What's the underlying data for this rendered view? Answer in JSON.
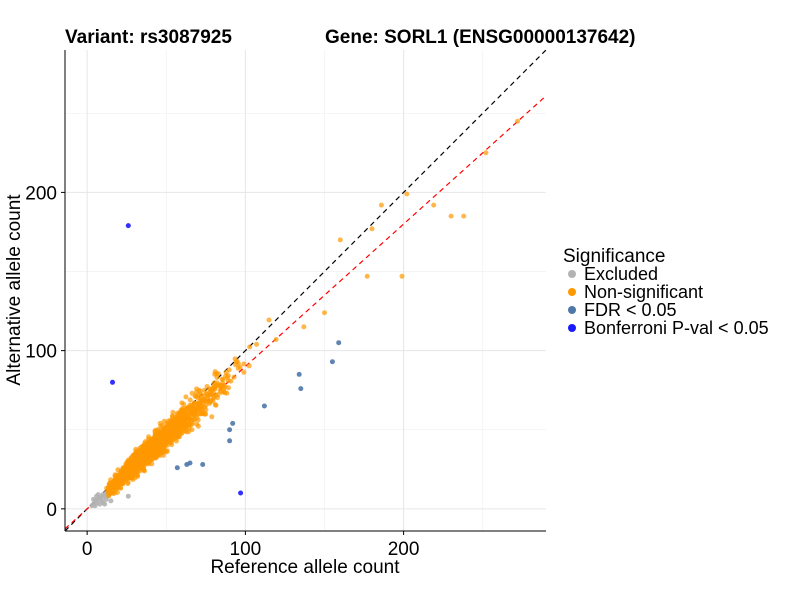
{
  "chart_data": {
    "type": "scatter",
    "title_left": "Variant: rs3087925",
    "title_right": "Gene: SORL1 (ENSG00000137642)",
    "xlabel": "Reference allele count",
    "ylabel": "Alternative allele count",
    "xlim": [
      -14,
      290
    ],
    "ylim": [
      -14,
      290
    ],
    "xticks": [
      0,
      100,
      200
    ],
    "yticks": [
      0,
      100,
      200
    ],
    "grid": true,
    "legend": {
      "title": "Significance",
      "placement": "right",
      "entries": [
        {
          "label": "Excluded",
          "color": "#b3b3b3"
        },
        {
          "label": "Non-significant",
          "color": "#ff9900"
        },
        {
          "label": "FDR < 0.05",
          "color": "#4f77a8"
        },
        {
          "label": "Bonferroni P-val < 0.05",
          "color": "#1a1aff"
        }
      ]
    },
    "reference_lines": [
      {
        "style": "dashed",
        "color": "#000000",
        "slope": 1.0,
        "intercept": 0
      },
      {
        "style": "dashed",
        "color": "#ff0000",
        "slope": 0.9,
        "intercept": 0
      }
    ],
    "series": [
      {
        "name": "Excluded",
        "color": "#b3b3b3",
        "points": [
          [
            3,
            2
          ],
          [
            4,
            3
          ],
          [
            5,
            5
          ],
          [
            6,
            4
          ],
          [
            7,
            6
          ],
          [
            8,
            7
          ],
          [
            9,
            5
          ],
          [
            10,
            9
          ],
          [
            11,
            8
          ],
          [
            12,
            10
          ],
          [
            6,
            8
          ],
          [
            8,
            3
          ],
          [
            10,
            4
          ],
          [
            12,
            6
          ],
          [
            13,
            8
          ],
          [
            5,
            2
          ],
          [
            7,
            9
          ],
          [
            9,
            7
          ],
          [
            15,
            5
          ],
          [
            11,
            3
          ],
          [
            14,
            9
          ],
          [
            4,
            6
          ],
          [
            26,
            8
          ]
        ]
      },
      {
        "name": "Non-significant",
        "color": "#ff9900",
        "points": "generated"
      },
      {
        "name": "FDR < 0.05",
        "color": "#4f77a8",
        "points": [
          [
            159,
            105
          ],
          [
            155,
            93
          ],
          [
            134,
            85
          ],
          [
            135,
            76
          ],
          [
            112,
            65
          ],
          [
            92,
            54
          ],
          [
            90,
            50
          ],
          [
            90,
            43
          ],
          [
            65,
            29
          ],
          [
            63,
            28
          ],
          [
            57,
            26
          ],
          [
            73,
            28
          ]
        ]
      },
      {
        "name": "Bonferroni P-val < 0.05",
        "color": "#1a1aff",
        "points": [
          [
            26,
            179
          ],
          [
            16,
            80
          ],
          [
            97,
            10
          ]
        ]
      }
    ],
    "highlight_points": [
      [
        238,
        185
      ],
      [
        272,
        245
      ],
      [
        252,
        225
      ],
      [
        219,
        192
      ],
      [
        202,
        199
      ],
      [
        199,
        147
      ],
      [
        160,
        170
      ],
      [
        177,
        147
      ],
      [
        150,
        124
      ],
      [
        186,
        192
      ],
      [
        180,
        177
      ],
      [
        230,
        185
      ]
    ]
  }
}
